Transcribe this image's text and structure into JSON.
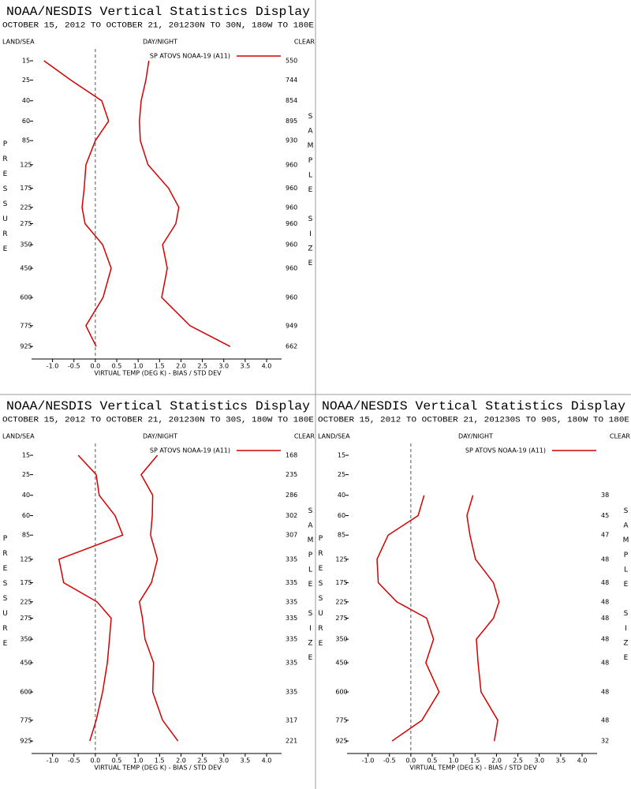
{
  "chart_data": [
    {
      "type": "line",
      "title": "NOAA/NESDIS Vertical Statistics Display",
      "subtitle": "OCTOBER 15, 2012 TO OCTOBER 21, 201230N TO 30N, 180W TO 180E",
      "corner_labels": [
        "LAND/SEA",
        "DAY/NIGHT",
        "CLEAR"
      ],
      "x_label": "VIRTUAL TEMP (DEG K) - BIAS / STD DEV",
      "y_label": "PRESSURE",
      "y2_label": "SAMPLE SIZE",
      "xlim": [
        -1.49,
        4.35
      ],
      "xticks": [
        {
          "value": -1.0,
          "label": "-1.0"
        },
        -0.5,
        {
          "value": 0.0,
          "label": "0.0"
        },
        0.5,
        {
          "value": 1.0,
          "label": "1.0"
        },
        1.5,
        {
          "value": 2.0,
          "label": "2.0"
        },
        2.5,
        {
          "value": 3.0,
          "label": "3.0"
        },
        3.5,
        {
          "value": 4.0,
          "label": "4.0"
        }
      ],
      "ylim": [
        10.5,
        1024
      ],
      "yticks": [
        15,
        25,
        40,
        60,
        85,
        125,
        175,
        225,
        275,
        350,
        450,
        600,
        775,
        925
      ],
      "sample_size": [
        550,
        744,
        854,
        895,
        930,
        960,
        960,
        960,
        960,
        960,
        960,
        960,
        949,
        662
      ],
      "series": [
        {
          "name": "SP ATOVS NOAA-19 (A11)",
          "color": "#d40000",
          "bias": [
            -1.2,
            -0.57,
            0.15,
            0.31,
            0.0,
            -0.22,
            -0.26,
            -0.31,
            -0.24,
            0.17,
            0.37,
            0.18,
            -0.22,
            0.02
          ],
          "std_dev": [
            1.25,
            1.18,
            1.07,
            1.03,
            1.05,
            1.23,
            1.71,
            1.95,
            1.88,
            1.57,
            1.68,
            1.55,
            2.21,
            3.15
          ]
        }
      ]
    },
    {
      "type": "line",
      "title": "NOAA/NESDIS Vertical Statistics Display",
      "subtitle": "OCTOBER 15, 2012 TO OCTOBER 21, 201230N TO 30S, 180W TO 180E",
      "corner_labels": [
        "LAND/SEA",
        "DAY/NIGHT",
        "CLEAR"
      ],
      "x_label": "VIRTUAL TEMP (DEG K) - BIAS / STD DEV",
      "y_label": "PRESSURE",
      "y2_label": "SAMPLE SIZE",
      "xlim": [
        -1.49,
        4.35
      ],
      "xticks": [
        {
          "value": -1.0,
          "label": "-1.0"
        },
        -0.5,
        {
          "value": 0.0,
          "label": "0.0"
        },
        0.5,
        {
          "value": 1.0,
          "label": "1.0"
        },
        1.5,
        {
          "value": 2.0,
          "label": "2.0"
        },
        2.5,
        {
          "value": 3.0,
          "label": "3.0"
        },
        3.5,
        {
          "value": 4.0,
          "label": "4.0"
        }
      ],
      "ylim": [
        10.5,
        1024
      ],
      "yticks": [
        15,
        25,
        40,
        60,
        85,
        125,
        175,
        225,
        275,
        350,
        450,
        600,
        775,
        925
      ],
      "sample_size": [
        168,
        235,
        286,
        302,
        307,
        335,
        335,
        335,
        335,
        335,
        335,
        335,
        317,
        221
      ],
      "series": [
        {
          "name": "SP ATOVS NOAA-19 (A11)",
          "color": "#d40000",
          "bias": [
            -0.4,
            0.02,
            0.09,
            0.46,
            0.64,
            -0.85,
            -0.74,
            0.04,
            0.37,
            0.33,
            0.28,
            0.17,
            0.02,
            -0.13
          ],
          "std_dev": [
            1.45,
            1.07,
            1.34,
            1.33,
            1.29,
            1.45,
            1.31,
            1.03,
            1.1,
            1.16,
            1.36,
            1.34,
            1.57,
            1.93
          ]
        }
      ]
    },
    {
      "type": "line",
      "title": "NOAA/NESDIS Vertical Statistics Display",
      "subtitle": "OCTOBER 15, 2012 TO OCTOBER 21, 201230S TO 90S, 180W TO 180E",
      "corner_labels": [
        "LAND/SEA",
        "DAY/NIGHT",
        "CLEAR"
      ],
      "x_label": "VIRTUAL TEMP (DEG K) - BIAS / STD DEV",
      "y_label": "PRESSURE",
      "y2_label": "SAMPLE SIZE",
      "xlim": [
        -1.49,
        4.35
      ],
      "xticks": [
        {
          "value": -1.0,
          "label": "-1.0"
        },
        -0.5,
        {
          "value": 0.0,
          "label": "0.0"
        },
        0.5,
        {
          "value": 1.0,
          "label": "1.0"
        },
        1.5,
        {
          "value": 2.0,
          "label": "2.0"
        },
        2.5,
        {
          "value": 3.0,
          "label": "3.0"
        },
        3.5,
        {
          "value": 4.0,
          "label": "4.0"
        }
      ],
      "ylim": [
        10.5,
        1024
      ],
      "yticks": [
        15,
        25,
        40,
        60,
        85,
        125,
        175,
        225,
        275,
        350,
        450,
        600,
        775,
        925
      ],
      "sample_size": [
        null,
        null,
        38,
        45,
        47,
        48,
        48,
        48,
        48,
        48,
        48,
        48,
        48,
        32
      ],
      "series": [
        {
          "name": "SP ATOVS NOAA-19 (A11)",
          "color": "#d40000",
          "bias": [
            null,
            null,
            0.31,
            0.17,
            -0.53,
            -0.79,
            -0.76,
            -0.33,
            0.37,
            0.53,
            0.35,
            0.66,
            0.26,
            -0.44
          ],
          "std_dev": [
            null,
            null,
            1.45,
            1.31,
            1.38,
            1.51,
            1.93,
            2.06,
            1.93,
            1.53,
            1.57,
            1.64,
            2.03,
            1.95
          ]
        }
      ]
    }
  ]
}
